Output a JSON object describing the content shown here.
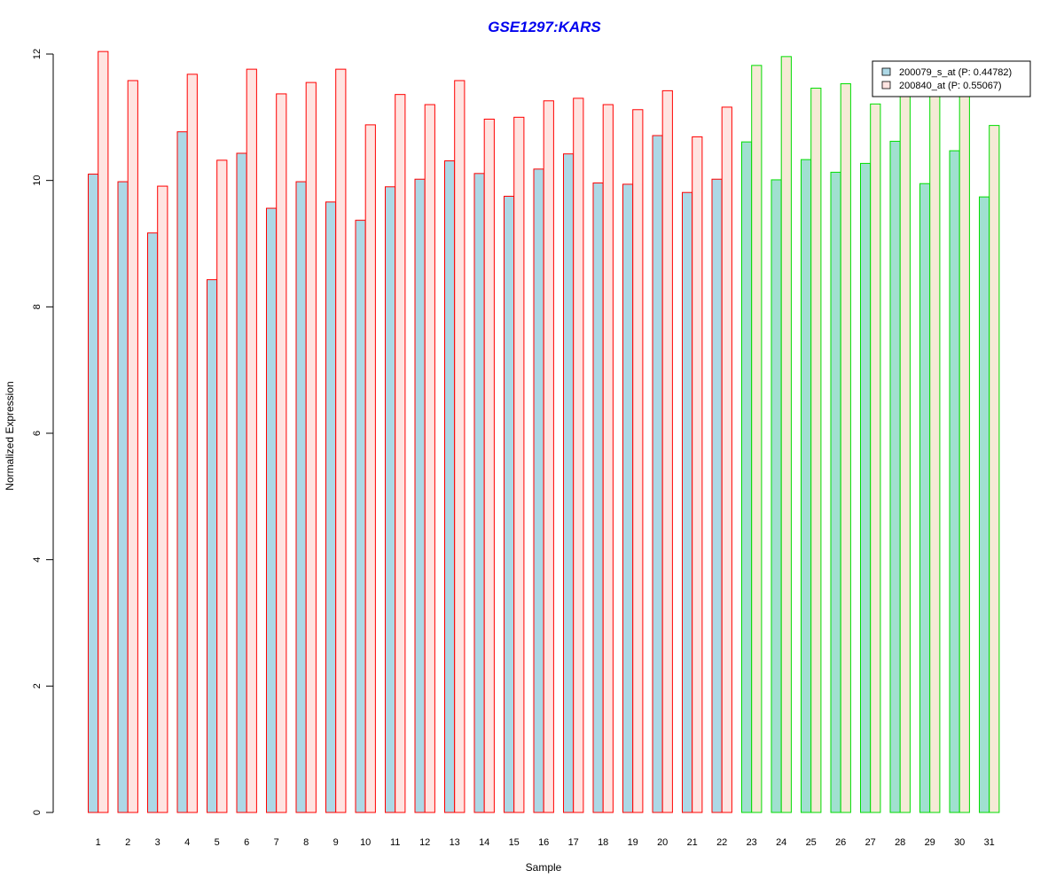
{
  "chart_data": {
    "type": "bar",
    "title": "GSE1297:KARS",
    "xlabel": "Sample",
    "ylabel": "Normalized Expression",
    "ylim": [
      0,
      12
    ],
    "yticks": [
      "0",
      "2",
      "4",
      "6",
      "8",
      "10",
      "12"
    ],
    "categories": [
      "1",
      "2",
      "3",
      "4",
      "5",
      "6",
      "7",
      "8",
      "9",
      "10",
      "11",
      "12",
      "13",
      "14",
      "15",
      "16",
      "17",
      "18",
      "19",
      "20",
      "21",
      "22",
      "23",
      "24",
      "25",
      "26",
      "27",
      "28",
      "29",
      "30",
      "31"
    ],
    "series": [
      {
        "name": "200079_s_at (P: 0.44782)",
        "fill_group1": "#add8e6",
        "fill_group2": "#a0e0d0",
        "values": [
          10.1,
          9.98,
          9.17,
          10.77,
          8.43,
          10.43,
          9.56,
          9.98,
          9.66,
          9.37,
          9.9,
          10.02,
          10.31,
          10.11,
          9.75,
          10.18,
          10.42,
          9.96,
          9.94,
          10.71,
          9.81,
          10.02,
          10.61,
          10.01,
          10.33,
          10.13,
          10.27,
          10.62,
          9.95,
          10.47,
          9.74
        ]
      },
      {
        "name": "200840_at (P: 0.55067)",
        "fill_group1": "#ffe4e1",
        "fill_group2": "#f5ead6",
        "values": [
          12.04,
          11.58,
          9.91,
          11.68,
          10.32,
          11.76,
          11.37,
          11.55,
          11.76,
          10.88,
          11.36,
          11.2,
          11.58,
          10.97,
          11.0,
          11.26,
          11.3,
          11.2,
          11.12,
          11.42,
          10.69,
          11.16,
          11.82,
          11.96,
          11.46,
          11.53,
          11.21,
          11.36,
          11.36,
          11.36,
          10.87
        ]
      }
    ],
    "group_outline_colors": [
      "#ff0000",
      "#00dd00"
    ],
    "group_split_after_index": 21,
    "legend_position": "top-right",
    "grid": false
  }
}
